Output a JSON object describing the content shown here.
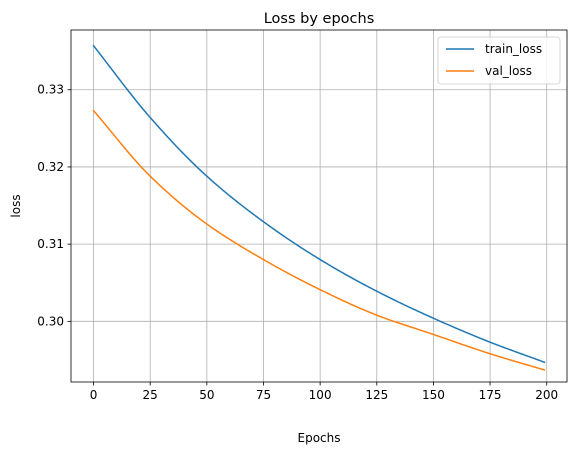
{
  "chart_data": {
    "type": "line",
    "title": "Loss by epochs",
    "xlabel": "Epochs",
    "ylabel": "loss",
    "xlim": [
      -9.95,
      208.95
    ],
    "ylim": [
      0.29214,
      0.33774
    ],
    "xticks": [
      0,
      25,
      50,
      75,
      100,
      125,
      150,
      175,
      200
    ],
    "xtick_labels": [
      "0",
      "25",
      "50",
      "75",
      "100",
      "125",
      "150",
      "175",
      "200"
    ],
    "yticks": [
      0.3,
      0.31,
      0.32,
      0.33
    ],
    "ytick_labels": [
      "0.30",
      "0.31",
      "0.32",
      "0.33"
    ],
    "grid": true,
    "legend_position": "top-right",
    "x": [
      0,
      25,
      50,
      75,
      100,
      125,
      150,
      175,
      199
    ],
    "series": [
      {
        "name": "train_loss",
        "color": "#1f77b4",
        "values": [
          0.3357,
          0.3264,
          0.3188,
          0.3129,
          0.308,
          0.3039,
          0.3004,
          0.2973,
          0.2947
        ]
      },
      {
        "name": "val_loss",
        "color": "#ff7f0e",
        "values": [
          0.3273,
          0.3188,
          0.3126,
          0.308,
          0.3041,
          0.3008,
          0.2983,
          0.2958,
          0.2937
        ]
      }
    ]
  }
}
